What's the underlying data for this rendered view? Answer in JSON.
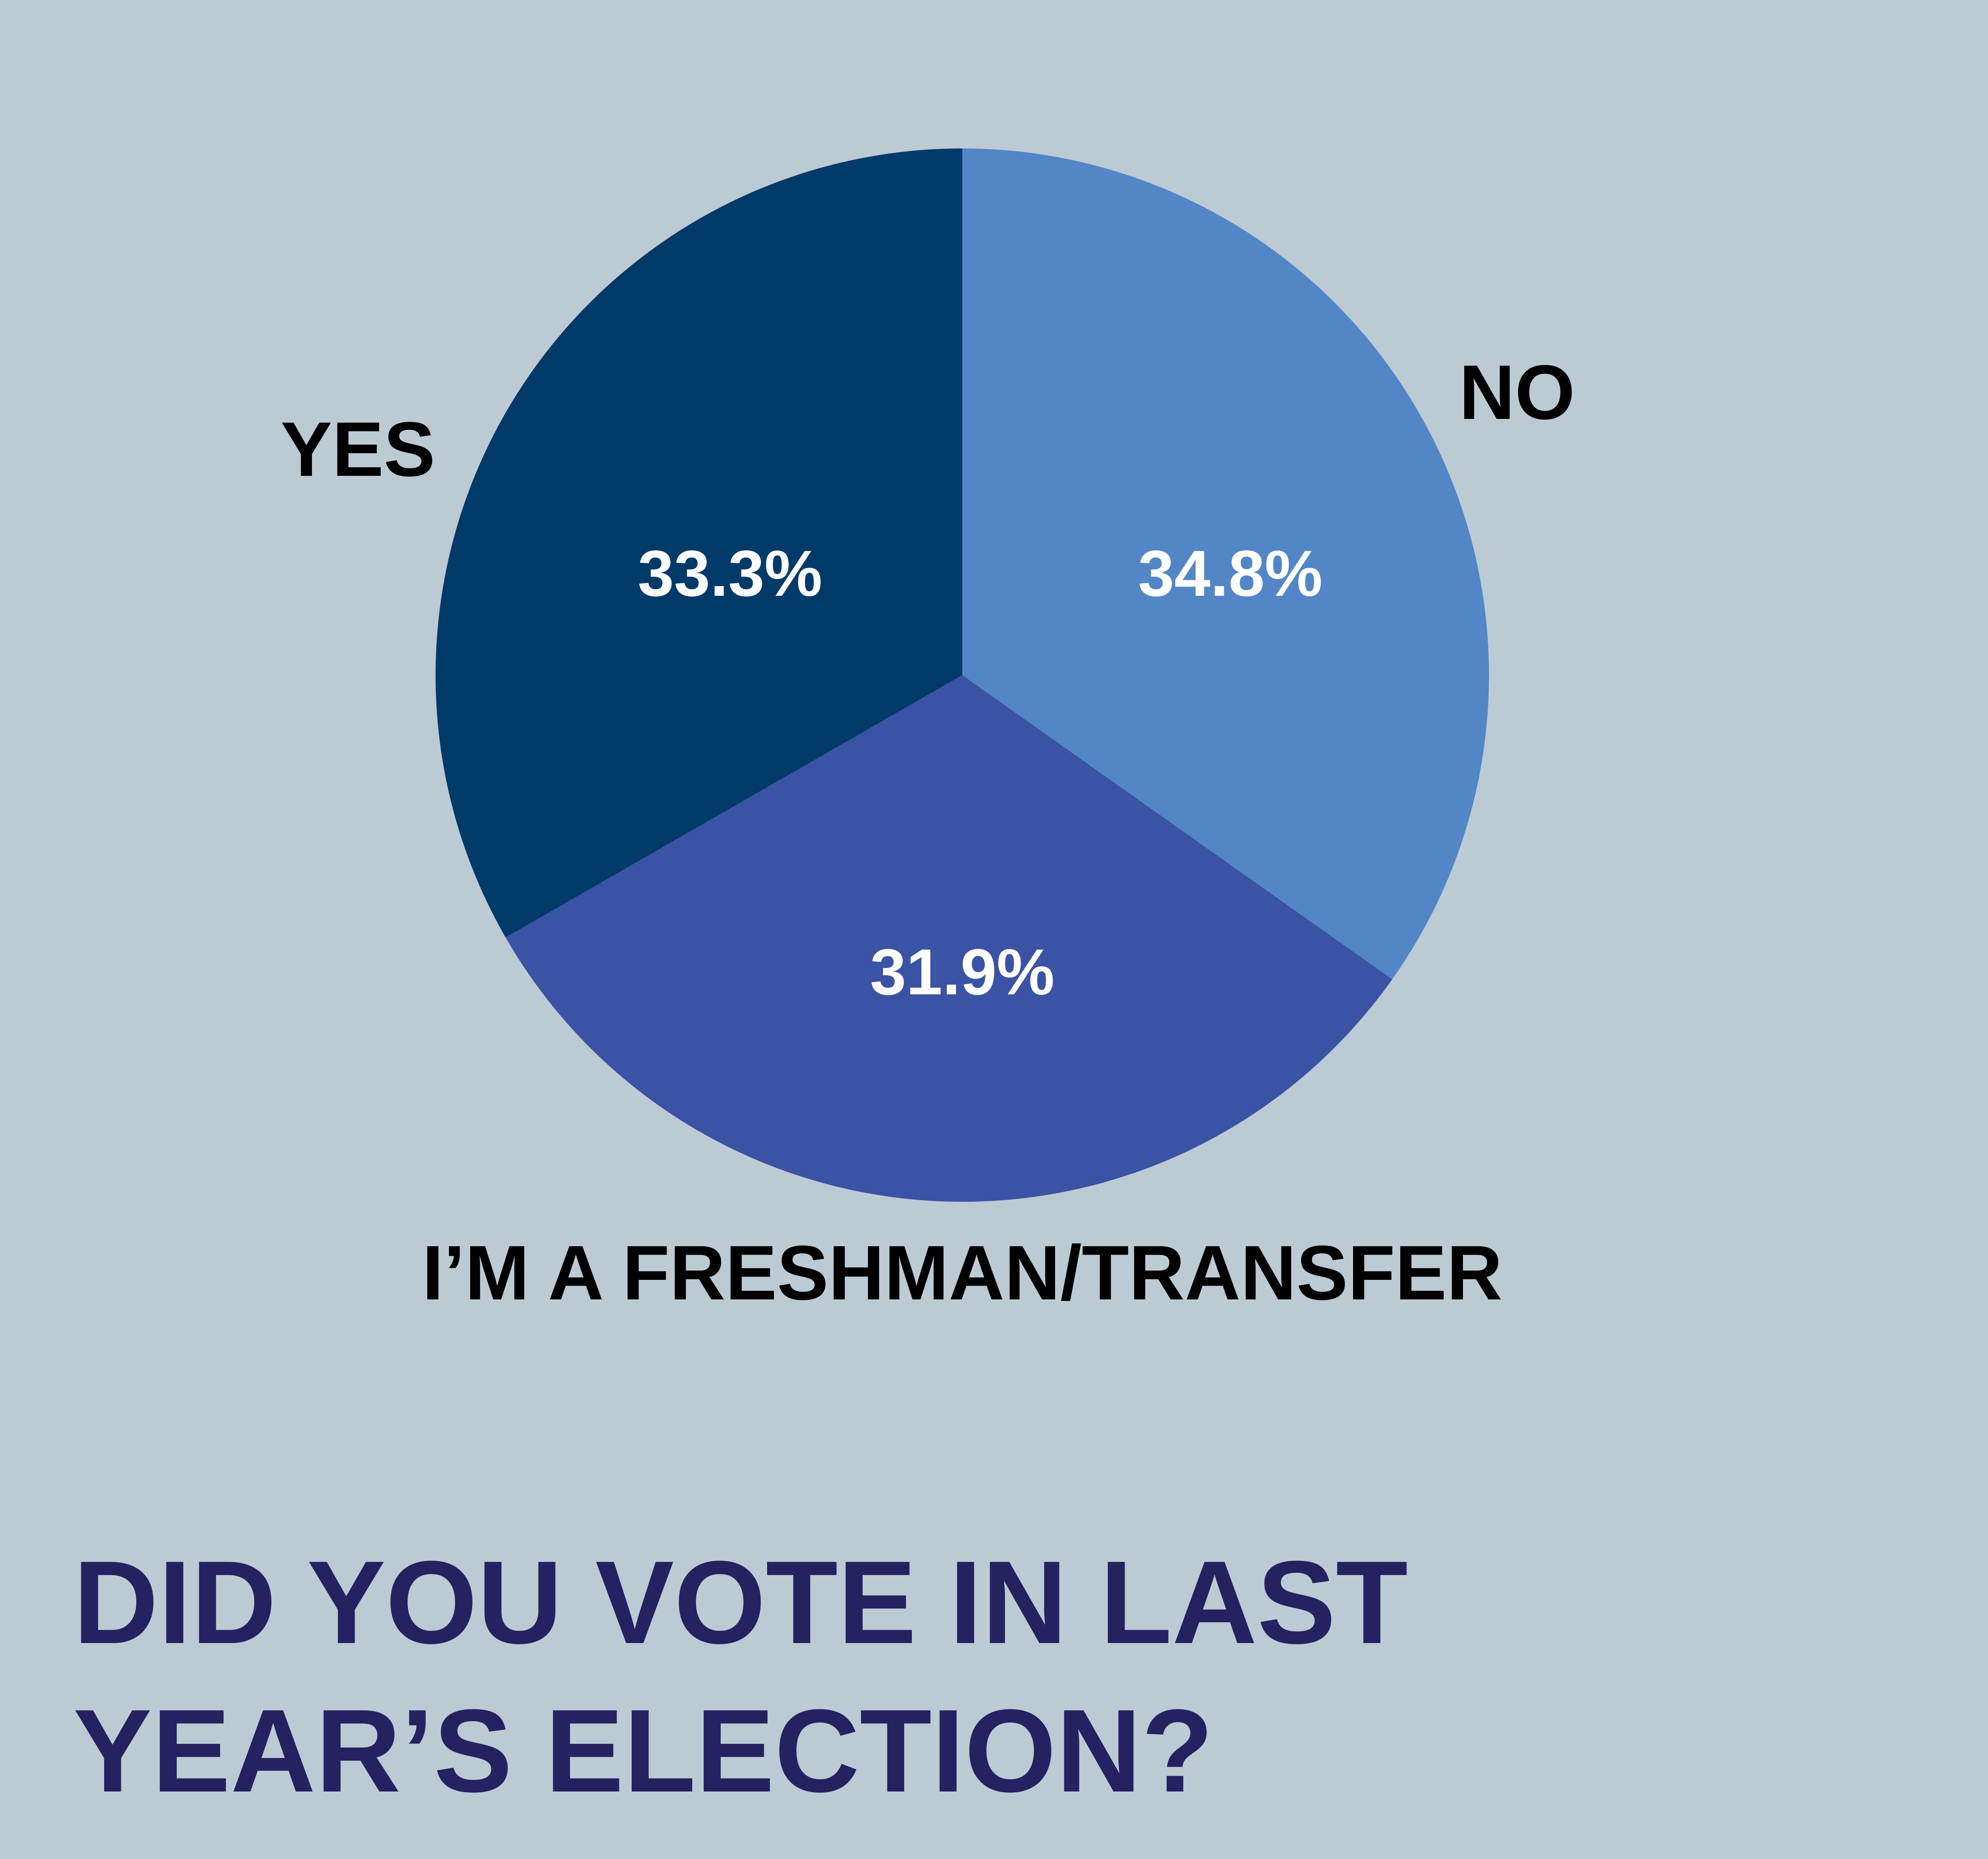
{
  "colors": {
    "background": "#bccad4",
    "slice_yes": "#003a69",
    "slice_no": "#5286c6",
    "slice_freshman": "#3b53a4",
    "category_text": "#000000",
    "percent_text": "#ffffff",
    "title_text": "#242260"
  },
  "title": {
    "line1": "DID YOU VOTE IN LAST",
    "line2": "YEAR’S ELECTION?"
  },
  "chart_data": {
    "type": "pie",
    "title": "DID YOU VOTE IN LAST YEAR’S ELECTION?",
    "unit": "%",
    "slices": [
      {
        "label": "NO",
        "value": 34.8,
        "display": "34.8%",
        "color": "#5286c6"
      },
      {
        "label": "I’M A FRESHMAN/TRANSFER",
        "value": 31.9,
        "display": "31.9%",
        "color": "#3b53a4"
      },
      {
        "label": "YES",
        "value": 33.3,
        "display": "33.3%",
        "color": "#003a69"
      }
    ],
    "start_angle": "12 o'clock",
    "direction": "clockwise",
    "legend": "none"
  }
}
